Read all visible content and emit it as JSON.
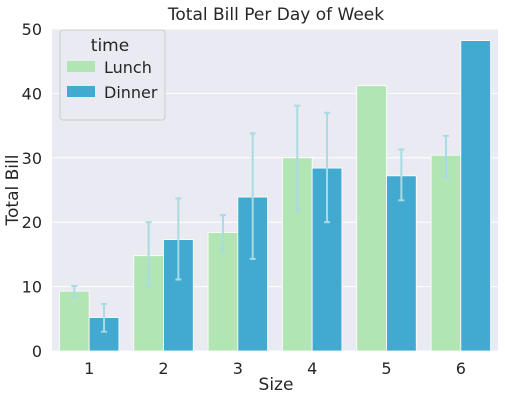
{
  "chart_data": {
    "type": "bar",
    "title": "Total Bill Per Day of Week",
    "xlabel": "Size",
    "ylabel": "Total Bill",
    "categories": [
      "1",
      "2",
      "3",
      "4",
      "5",
      "6"
    ],
    "ylim": [
      0,
      50
    ],
    "yticks": [
      "0",
      "10",
      "20",
      "30",
      "40",
      "50"
    ],
    "grid": true,
    "legend": {
      "title": "time",
      "placement": "top-left"
    },
    "series": [
      {
        "name": "Lunch",
        "color": "#b2e5b4",
        "values": [
          9.3,
          14.8,
          18.4,
          30.0,
          41.2,
          30.4
        ],
        "error_low": [
          8.4,
          10.0,
          15.5,
          21.8,
          null,
          27.0
        ],
        "error_high": [
          10.1,
          20.0,
          21.1,
          38.1,
          null,
          33.4
        ]
      },
      {
        "name": "Dinner",
        "color": "#42a9d1",
        "values": [
          5.2,
          17.3,
          23.9,
          28.4,
          27.2,
          48.2
        ],
        "error_low": [
          3.0,
          11.1,
          14.3,
          20.0,
          23.4,
          null
        ],
        "error_high": [
          7.3,
          23.7,
          33.8,
          37.0,
          31.3,
          null
        ]
      }
    ],
    "background_color": "#eaeaf2",
    "grid_color": "#ffffff",
    "error_color": "#a9dbe3"
  }
}
